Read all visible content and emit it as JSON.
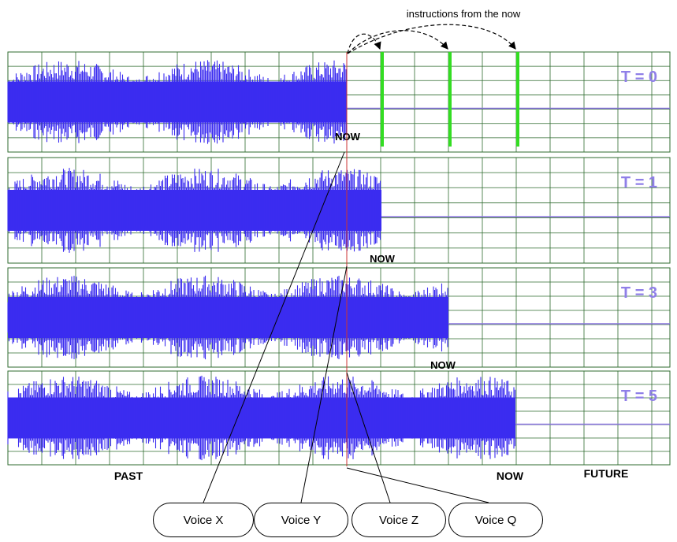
{
  "header": {
    "caption": "instructions from the now"
  },
  "tracks": [
    {
      "label": "T = 0",
      "now_label": "NOW"
    },
    {
      "label": "T = 1",
      "now_label": "NOW"
    },
    {
      "label": "T = 3",
      "now_label": "NOW"
    },
    {
      "label": "T = 5",
      "now_label": "NOW"
    }
  ],
  "axis": {
    "past": "PAST",
    "future": "FUTURE"
  },
  "voices": [
    {
      "label": "Voice X"
    },
    {
      "label": "Voice Y"
    },
    {
      "label": "Voice Z"
    },
    {
      "label": "Voice Q"
    }
  ],
  "colors": {
    "waveform": "#3b2cf0",
    "grid": "#2f6b2f",
    "marker": "#33dd22",
    "label": "#8f7fe8",
    "now_line": "#cc3333",
    "baseline": "#8a74e0"
  }
}
